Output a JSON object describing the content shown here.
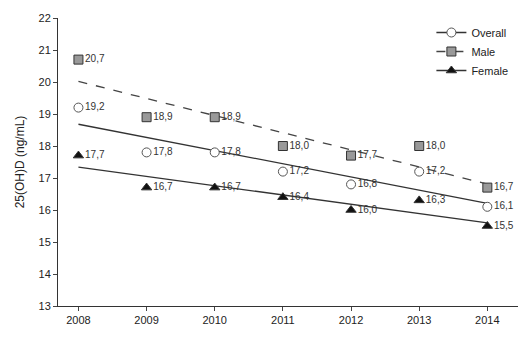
{
  "chart_data": {
    "type": "scatter",
    "y_label": "25(OH)D (ng/mL)",
    "x": [
      2008,
      2009,
      2010,
      2011,
      2012,
      2013,
      2014
    ],
    "xlim": [
      2007.7,
      2014.45
    ],
    "xticks": [
      2008,
      2009,
      2010,
      2011,
      2012,
      2013,
      2014
    ],
    "ylim": [
      13,
      22
    ],
    "yticks": [
      13,
      14,
      15,
      16,
      17,
      18,
      19,
      20,
      21,
      22
    ],
    "grid": false,
    "legend": "upper right",
    "data_labels": true,
    "series": [
      {
        "name": "Overall",
        "color": "#555555",
        "marker": "circle-open",
        "line_style": "solid",
        "values": [
          19.2,
          17.8,
          17.8,
          17.2,
          16.8,
          17.2,
          16.1
        ],
        "value_labels": [
          "19,2",
          "17,8",
          "17,8",
          "17,2",
          "16,8",
          "17,2",
          "16,1"
        ],
        "trend": {
          "x": [
            2008,
            2014
          ],
          "values": [
            18.68,
            16.21
          ]
        }
      },
      {
        "name": "Male",
        "color": "#999999",
        "marker": "square",
        "line_style": "dash",
        "values": [
          20.7,
          18.9,
          18.9,
          18.0,
          17.7,
          18.0,
          16.7
        ],
        "value_labels": [
          "20,7",
          "18,9",
          "18,9",
          "18,0",
          "17,7",
          "18,0",
          "16,7"
        ],
        "trend": {
          "x": [
            2008,
            2014
          ],
          "values": [
            20.02,
            16.81
          ]
        }
      },
      {
        "name": "Female",
        "color": "#111111",
        "marker": "triangle-up",
        "line_style": "solid",
        "values": [
          17.7,
          16.7,
          16.7,
          16.4,
          16.0,
          16.3,
          15.5
        ],
        "value_labels": [
          "17,7",
          "16,7",
          "16,7",
          "16,4",
          "16,0",
          "16,3",
          "15,5"
        ],
        "trend": {
          "x": [
            2008,
            2014
          ],
          "values": [
            17.34,
            15.6
          ]
        }
      }
    ]
  }
}
